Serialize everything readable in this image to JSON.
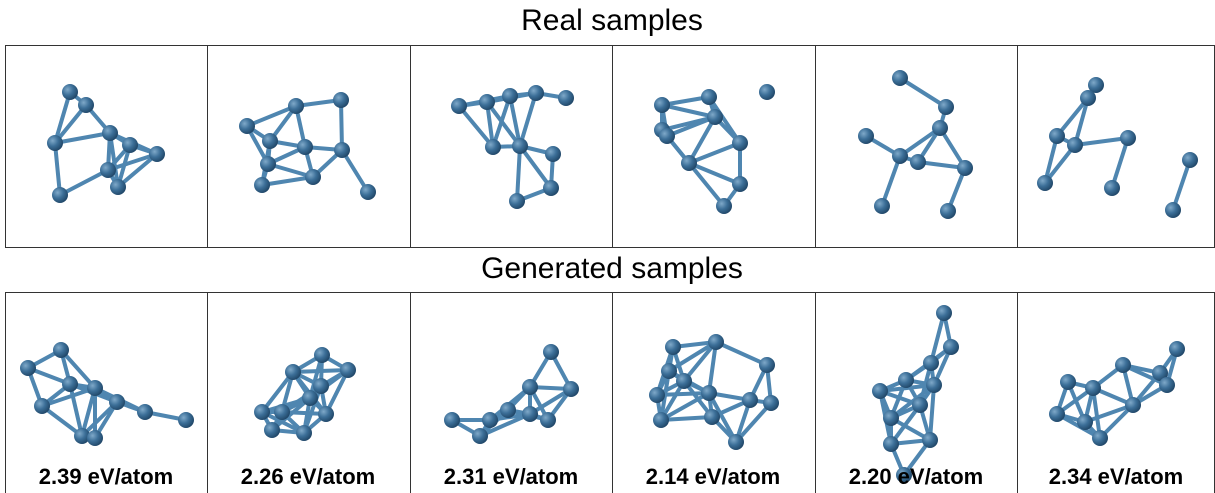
{
  "real": {
    "title": "Real samples"
  },
  "generated": {
    "title": "Generated samples",
    "energies": [
      "2.39 eV/atom",
      "2.26 eV/atom",
      "2.31 eV/atom",
      "2.14 eV/atom",
      "2.20 eV/atom",
      "2.34 eV/atom"
    ]
  }
}
